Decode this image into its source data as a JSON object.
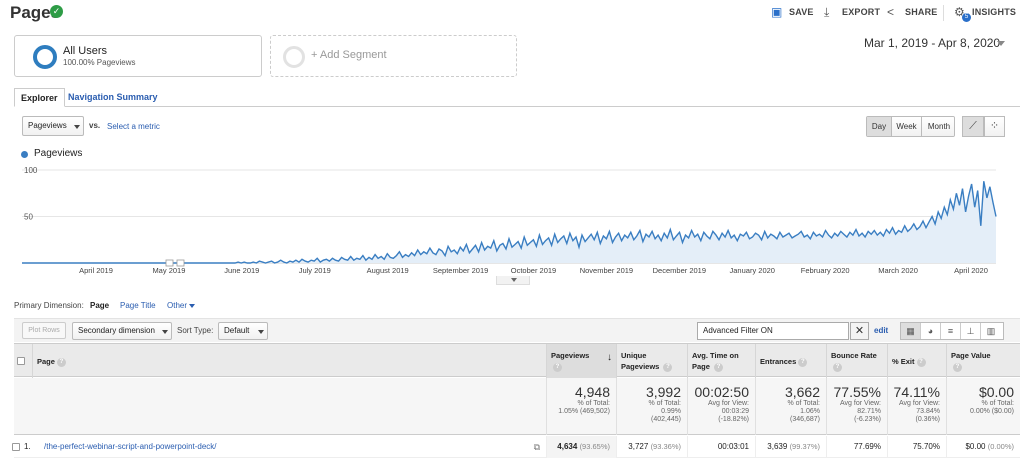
{
  "header": {
    "title": "Pages",
    "actions": [
      {
        "label": "SAVE",
        "icon": "save-icon"
      },
      {
        "label": "EXPORT",
        "icon": "export-icon"
      },
      {
        "label": "SHARE",
        "icon": "share-icon"
      },
      {
        "label": "INSIGHTS",
        "icon": "insights-icon",
        "badge": "5"
      }
    ]
  },
  "segments": {
    "active": {
      "name": "All Users",
      "sub": "100.00% Pageviews"
    },
    "add_label": "+ Add Segment"
  },
  "date_range": "Mar 1, 2019 - Apr 8, 2020",
  "tabs": [
    {
      "label": "Explorer",
      "active": true
    },
    {
      "label": "Navigation Summary",
      "active": false
    }
  ],
  "chart_controls": {
    "metric": "Pageviews",
    "vs": "vs.",
    "select_metric": "Select a metric",
    "periods": [
      "Day",
      "Week",
      "Month"
    ],
    "active_period": "Day"
  },
  "chart_data": {
    "type": "area",
    "series": [
      {
        "name": "Pageviews",
        "color": "#3a7ec2"
      }
    ],
    "y_ticks": [
      "100",
      "50"
    ],
    "x_ticks": [
      "April 2019",
      "May 2019",
      "June 2019",
      "July 2019",
      "August 2019",
      "September 2019",
      "October 2019",
      "November 2019",
      "December 2019",
      "January 2020",
      "February 2020",
      "March 2020",
      "April 2020"
    ],
    "ylim": [
      0,
      100
    ],
    "values": [
      0,
      0,
      0,
      0,
      0,
      0,
      0,
      0,
      0,
      0,
      0,
      0,
      0,
      0,
      0,
      0,
      0,
      0,
      0,
      0,
      0,
      0,
      0,
      0,
      0,
      0,
      0,
      0,
      0,
      0,
      0,
      0,
      0,
      0,
      0,
      0,
      0,
      0,
      0,
      0,
      0,
      0,
      0,
      0,
      0,
      0,
      0,
      0,
      0,
      0,
      0,
      0,
      0,
      0,
      0,
      0,
      0,
      0,
      0,
      0,
      0,
      0,
      0,
      0,
      0,
      0,
      0,
      0,
      0,
      0,
      0,
      1,
      0,
      1,
      0,
      0,
      1,
      0,
      2,
      1,
      0,
      1,
      2,
      0,
      1,
      3,
      1,
      0,
      2,
      1,
      3,
      1,
      4,
      2,
      1,
      3,
      2,
      5,
      1,
      3,
      4,
      2,
      5,
      3,
      2,
      6,
      4,
      3,
      7,
      3,
      5,
      4,
      8,
      3,
      6,
      4,
      9,
      5,
      7,
      4,
      10,
      6,
      5,
      8,
      12,
      6,
      9,
      7,
      11,
      8,
      14,
      9,
      12,
      10,
      16,
      11,
      9,
      15,
      13,
      8,
      18,
      12,
      14,
      10,
      17,
      13,
      20,
      11,
      15,
      19,
      12,
      22,
      14,
      18,
      16,
      24,
      13,
      19,
      21,
      15,
      26,
      17,
      20,
      23,
      16,
      28,
      19,
      22,
      25,
      18,
      30,
      20,
      24,
      27,
      19,
      31,
      22,
      26,
      29,
      21,
      32,
      24,
      28,
      17,
      30,
      23,
      27,
      31,
      25,
      33,
      21,
      29,
      26,
      34,
      22,
      28,
      32,
      24,
      30,
      27,
      33,
      25,
      29,
      35,
      23,
      31,
      28,
      34,
      26,
      30,
      24,
      32,
      27,
      36,
      25,
      29,
      33,
      22,
      30,
      27,
      35,
      28,
      31,
      24,
      33,
      29,
      26,
      34,
      30,
      25,
      32,
      28,
      35,
      27,
      30,
      24,
      31,
      29,
      33,
      26,
      28,
      32,
      30,
      25,
      34,
      27,
      31,
      29,
      26,
      33,
      28,
      30,
      32,
      27,
      29,
      31,
      34,
      28,
      30,
      26,
      33,
      29,
      31,
      28,
      35,
      30,
      27,
      32,
      29,
      34,
      31,
      28,
      33,
      30,
      36,
      29,
      32,
      28,
      34,
      31,
      35,
      30,
      33,
      29,
      36,
      32,
      38,
      31,
      35,
      33,
      40,
      34,
      37,
      42,
      36,
      39,
      45,
      38,
      44,
      50,
      42,
      55,
      48,
      60,
      52,
      68,
      58,
      75,
      62,
      80,
      55,
      72,
      85,
      60,
      78,
      40,
      88,
      70,
      82,
      65,
      50
    ],
    "xlabel": "",
    "ylabel": ""
  },
  "primary_dimension": {
    "label": "Primary Dimension:",
    "active": "Page",
    "options": [
      "Page Title",
      "Other"
    ]
  },
  "table_toolbar": {
    "plot_rows": "Plot Rows",
    "secondary_dimension": "Secondary dimension",
    "sort_type_label": "Sort Type:",
    "sort_type": "Default",
    "filter": "Advanced Filter ON",
    "edit": "edit"
  },
  "table": {
    "columns": [
      "Page",
      "Pageviews",
      "Unique Pageviews",
      "Avg. Time on Page",
      "Entrances",
      "Bounce Rate",
      "% Exit",
      "Page Value"
    ],
    "totals": [
      {
        "big": "4,948",
        "l1": "% of Total:",
        "l2": "1.05% (469,502)"
      },
      {
        "big": "3,992",
        "l1": "% of Total:",
        "l2": "0.99%",
        "l3": "(402,445)"
      },
      {
        "big": "00:02:50",
        "l1": "Avg for View:",
        "l2": "00:03:29",
        "l3": "(-18.82%)"
      },
      {
        "big": "3,662",
        "l1": "% of Total:",
        "l2": "1.06%",
        "l3": "(346,687)"
      },
      {
        "big": "77.55%",
        "l1": "Avg for View:",
        "l2": "82.71%",
        "l3": "(-6.23%)"
      },
      {
        "big": "74.11%",
        "l1": "Avg for View:",
        "l2": "73.84%",
        "l3": "(0.36%)"
      },
      {
        "big": "$0.00",
        "l1": "% of Total:",
        "l2": "0.00% ($0.00)"
      }
    ],
    "rows": [
      {
        "index": "1.",
        "page": "/the-perfect-webinar-script-and-powerpoint-deck/",
        "pageviews": "4,634",
        "pageviews_pct": "(93.65%)",
        "unique": "3,727",
        "unique_pct": "(93.36%)",
        "avg_time": "00:03:01",
        "entrances": "3,639",
        "entrances_pct": "(99.37%)",
        "bounce": "77.69%",
        "exit": "75.70%",
        "value": "$0.00",
        "value_pct": "(0.00%)"
      }
    ]
  }
}
